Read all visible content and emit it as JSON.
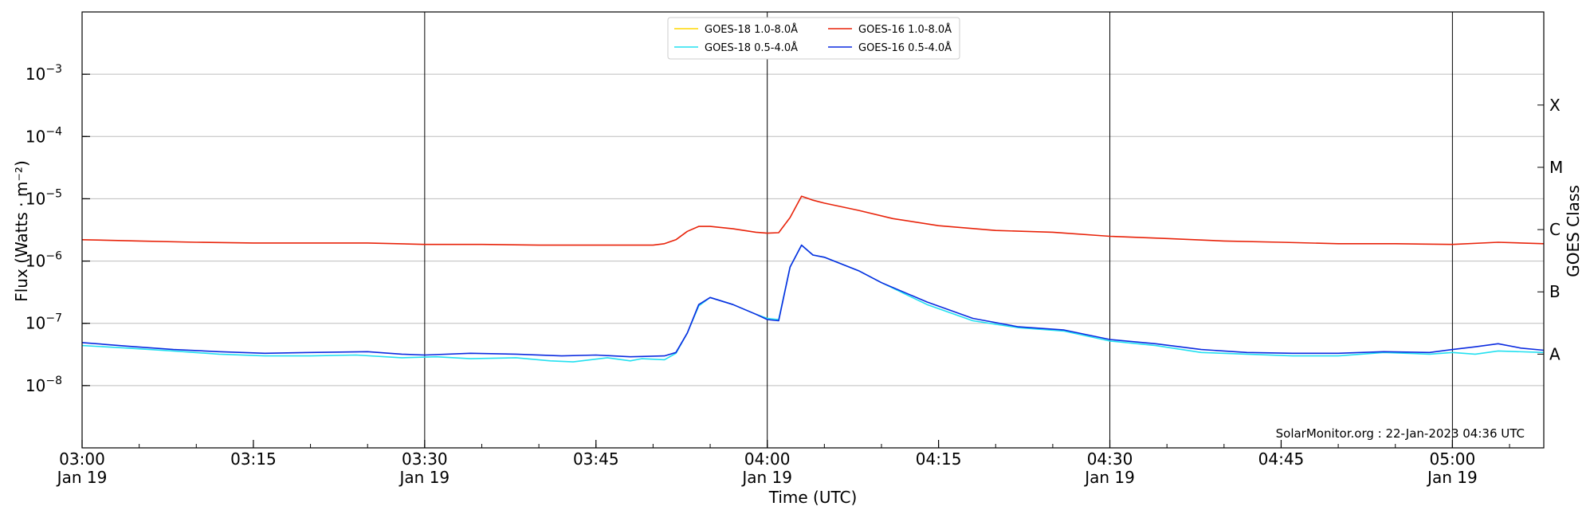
{
  "chart_data": {
    "type": "line",
    "xlabel": "Time (UTC)",
    "ylabel": "Flux (Watts · m⁻²)",
    "y2label": "GOES Class",
    "credit": "SolarMonitor.org : 22-Jan-2023 04:36 UTC",
    "y_scale": "log",
    "ylim": [
      1e-09,
      0.01
    ],
    "xlim": [
      "03:00",
      "05:08"
    ],
    "grid": "horizontal at decades; vertical at every 30 min",
    "legend_position": "top-center",
    "yticks": [
      {
        "value": 1e-08,
        "label": "10",
        "exp": "−8"
      },
      {
        "value": 1e-07,
        "label": "10",
        "exp": "−7"
      },
      {
        "value": 1e-06,
        "label": "10",
        "exp": "−6"
      },
      {
        "value": 1e-05,
        "label": "10",
        "exp": "−5"
      },
      {
        "value": 0.0001,
        "label": "10",
        "exp": "−4"
      },
      {
        "value": 0.001,
        "label": "10",
        "exp": "−3"
      }
    ],
    "xticks": [
      {
        "time": "03:00",
        "label": "03:00",
        "sub": "Jan 19"
      },
      {
        "time": "03:15",
        "label": "03:15",
        "sub": ""
      },
      {
        "time": "03:30",
        "label": "03:30",
        "sub": "Jan 19"
      },
      {
        "time": "03:45",
        "label": "03:45",
        "sub": ""
      },
      {
        "time": "04:00",
        "label": "04:00",
        "sub": "Jan 19"
      },
      {
        "time": "04:15",
        "label": "04:15",
        "sub": ""
      },
      {
        "time": "04:30",
        "label": "04:30",
        "sub": "Jan 19"
      },
      {
        "time": "04:45",
        "label": "04:45",
        "sub": ""
      },
      {
        "time": "05:00",
        "label": "05:00",
        "sub": "Jan 19"
      }
    ],
    "goes_classes": [
      {
        "label": "A",
        "value": 3.2e-08
      },
      {
        "label": "B",
        "value": 3.2e-07
      },
      {
        "label": "C",
        "value": 3.2e-06
      },
      {
        "label": "M",
        "value": 3.2e-05
      },
      {
        "label": "X",
        "value": 0.00032
      }
    ],
    "series": [
      {
        "name": "GOES-18 1.0-8.0Å",
        "color": "#ffd700",
        "points": []
      },
      {
        "name": "GOES-18 0.5-4.0Å",
        "color": "#22e0f0",
        "points": [
          [
            "03:00",
            4.4e-08
          ],
          [
            "03:04",
            4e-08
          ],
          [
            "03:08",
            3.6e-08
          ],
          [
            "03:12",
            3.2e-08
          ],
          [
            "03:16",
            3e-08
          ],
          [
            "03:20",
            3e-08
          ],
          [
            "03:24",
            3.1e-08
          ],
          [
            "03:28",
            2.8e-08
          ],
          [
            "03:31",
            2.9e-08
          ],
          [
            "03:34",
            2.7e-08
          ],
          [
            "03:38",
            2.8e-08
          ],
          [
            "03:41",
            2.5e-08
          ],
          [
            "03:43",
            2.4e-08
          ],
          [
            "03:46",
            2.8e-08
          ],
          [
            "03:48",
            2.5e-08
          ],
          [
            "03:49",
            2.7e-08
          ],
          [
            "03:51",
            2.6e-08
          ],
          [
            "03:52",
            3.3e-08
          ],
          [
            "03:53",
            7e-08
          ],
          [
            "03:54",
            1.9e-07
          ],
          [
            "03:55",
            2.6e-07
          ],
          [
            "03:57",
            2e-07
          ],
          [
            "03:59",
            1.4e-07
          ],
          [
            "04:00",
            1.2e-07
          ],
          [
            "04:01",
            1.15e-07
          ],
          [
            "04:02",
            8e-07
          ],
          [
            "04:03",
            1.8e-06
          ],
          [
            "04:04",
            1.25e-06
          ],
          [
            "04:05",
            1.15e-06
          ],
          [
            "04:08",
            7e-07
          ],
          [
            "04:10",
            4.5e-07
          ],
          [
            "04:14",
            2e-07
          ],
          [
            "04:18",
            1.1e-07
          ],
          [
            "04:22",
            8.5e-08
          ],
          [
            "04:26",
            7.5e-08
          ],
          [
            "04:30",
            5.2e-08
          ],
          [
            "04:34",
            4.4e-08
          ],
          [
            "04:38",
            3.4e-08
          ],
          [
            "04:42",
            3.2e-08
          ],
          [
            "04:46",
            3e-08
          ],
          [
            "04:50",
            3e-08
          ],
          [
            "04:54",
            3.4e-08
          ],
          [
            "04:58",
            3.2e-08
          ],
          [
            "05:00",
            3.4e-08
          ],
          [
            "05:02",
            3.2e-08
          ],
          [
            "05:04",
            3.6e-08
          ],
          [
            "05:08",
            3.4e-08
          ]
        ]
      },
      {
        "name": "GOES-16 1.0-8.0Å",
        "color": "#e8230a",
        "points": [
          [
            "03:00",
            2.2e-06
          ],
          [
            "03:05",
            2.1e-06
          ],
          [
            "03:10",
            2e-06
          ],
          [
            "03:15",
            1.95e-06
          ],
          [
            "03:20",
            1.95e-06
          ],
          [
            "03:25",
            1.95e-06
          ],
          [
            "03:30",
            1.85e-06
          ],
          [
            "03:35",
            1.85e-06
          ],
          [
            "03:40",
            1.8e-06
          ],
          [
            "03:45",
            1.8e-06
          ],
          [
            "03:50",
            1.8e-06
          ],
          [
            "03:51",
            1.9e-06
          ],
          [
            "03:52",
            2.2e-06
          ],
          [
            "03:53",
            3e-06
          ],
          [
            "03:54",
            3.6e-06
          ],
          [
            "03:55",
            3.6e-06
          ],
          [
            "03:57",
            3.3e-06
          ],
          [
            "03:59",
            2.9e-06
          ],
          [
            "04:00",
            2.8e-06
          ],
          [
            "04:01",
            2.85e-06
          ],
          [
            "04:02",
            5e-06
          ],
          [
            "04:03",
            1.1e-05
          ],
          [
            "04:04",
            9.5e-06
          ],
          [
            "04:05",
            8.5e-06
          ],
          [
            "04:08",
            6.5e-06
          ],
          [
            "04:11",
            4.8e-06
          ],
          [
            "04:15",
            3.7e-06
          ],
          [
            "04:20",
            3.1e-06
          ],
          [
            "04:25",
            2.9e-06
          ],
          [
            "04:30",
            2.5e-06
          ],
          [
            "04:35",
            2.3e-06
          ],
          [
            "04:40",
            2.1e-06
          ],
          [
            "04:45",
            2e-06
          ],
          [
            "04:50",
            1.9e-06
          ],
          [
            "04:55",
            1.9e-06
          ],
          [
            "05:00",
            1.85e-06
          ],
          [
            "05:04",
            2e-06
          ],
          [
            "05:08",
            1.9e-06
          ]
        ]
      },
      {
        "name": "GOES-16 0.5-4.0Å",
        "color": "#0b2be0",
        "points": [
          [
            "03:00",
            4.9e-08
          ],
          [
            "03:04",
            4.3e-08
          ],
          [
            "03:08",
            3.8e-08
          ],
          [
            "03:12",
            3.5e-08
          ],
          [
            "03:16",
            3.3e-08
          ],
          [
            "03:20",
            3.4e-08
          ],
          [
            "03:25",
            3.5e-08
          ],
          [
            "03:28",
            3.2e-08
          ],
          [
            "03:30",
            3.1e-08
          ],
          [
            "03:34",
            3.3e-08
          ],
          [
            "03:38",
            3.2e-08
          ],
          [
            "03:42",
            3e-08
          ],
          [
            "03:45",
            3.1e-08
          ],
          [
            "03:48",
            2.9e-08
          ],
          [
            "03:51",
            3e-08
          ],
          [
            "03:52",
            3.4e-08
          ],
          [
            "03:53",
            7e-08
          ],
          [
            "03:54",
            2e-07
          ],
          [
            "03:55",
            2.6e-07
          ],
          [
            "03:57",
            2e-07
          ],
          [
            "03:59",
            1.4e-07
          ],
          [
            "04:00",
            1.15e-07
          ],
          [
            "04:01",
            1.1e-07
          ],
          [
            "04:02",
            8e-07
          ],
          [
            "04:03",
            1.8e-06
          ],
          [
            "04:04",
            1.25e-06
          ],
          [
            "04:05",
            1.15e-06
          ],
          [
            "04:08",
            7e-07
          ],
          [
            "04:10",
            4.5e-07
          ],
          [
            "04:14",
            2.2e-07
          ],
          [
            "04:18",
            1.2e-07
          ],
          [
            "04:22",
            8.8e-08
          ],
          [
            "04:26",
            7.8e-08
          ],
          [
            "04:30",
            5.5e-08
          ],
          [
            "04:34",
            4.7e-08
          ],
          [
            "04:38",
            3.8e-08
          ],
          [
            "04:42",
            3.4e-08
          ],
          [
            "04:46",
            3.3e-08
          ],
          [
            "04:50",
            3.3e-08
          ],
          [
            "04:54",
            3.5e-08
          ],
          [
            "04:58",
            3.4e-08
          ],
          [
            "05:00",
            3.8e-08
          ],
          [
            "05:02",
            4.2e-08
          ],
          [
            "05:04",
            4.7e-08
          ],
          [
            "05:06",
            4e-08
          ],
          [
            "05:08",
            3.7e-08
          ]
        ]
      }
    ]
  }
}
